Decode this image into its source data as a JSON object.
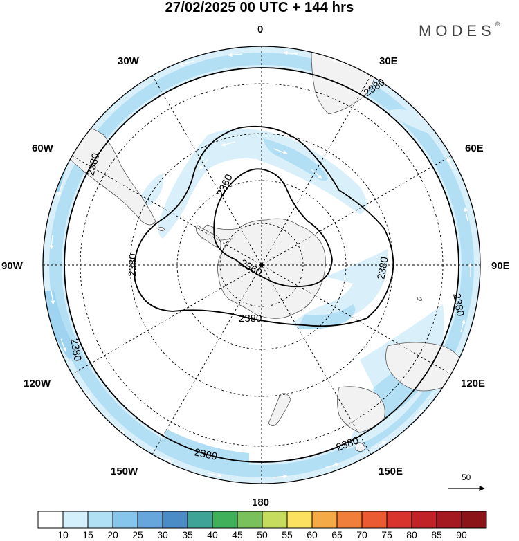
{
  "header": {
    "title": "27/02/2025  00 UTC  + 144 hrs",
    "brand": "MODES",
    "brand_mark": "©"
  },
  "map": {
    "projection": "south-polar-stereographic",
    "longitude_labels": {
      "lon_0": "0",
      "lon_30e": "30E",
      "lon_60e": "60E",
      "lon_90e": "90E",
      "lon_120e": "120E",
      "lon_150e": "150E",
      "lon_180": "180",
      "lon_150w": "150W",
      "lon_120w": "120W",
      "lon_90w": "90W",
      "lon_60w": "60W",
      "lon_30w": "30W"
    },
    "contour_labels": [
      "2380",
      "2360"
    ],
    "wind_reference_vector": "50",
    "colors": {
      "land": "#f2f2f2",
      "shade_15": "#d9f0fb",
      "shade_20": "#b3dff5",
      "contour": "#000000"
    }
  },
  "colorbar": {
    "labels": [
      "10",
      "15",
      "20",
      "25",
      "30",
      "35",
      "40",
      "45",
      "50",
      "55",
      "60",
      "65",
      "70",
      "75",
      "80",
      "85",
      "90"
    ],
    "colors": [
      "#ffffff",
      "#d4f0fc",
      "#b0e0f6",
      "#87c6ec",
      "#67a6dd",
      "#4b8cc6",
      "#3fa497",
      "#40b05a",
      "#79c25b",
      "#c5dc5e",
      "#fbe15f",
      "#f5aa48",
      "#f07f3c",
      "#ea5a33",
      "#d8332d",
      "#c02228",
      "#a3191f",
      "#8a1418"
    ]
  }
}
